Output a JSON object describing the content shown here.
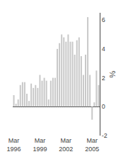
{
  "chart_data": {
    "type": "bar",
    "ylabel": "%",
    "categories": [
      "Mar\n1996",
      null,
      null,
      null,
      null,
      null,
      null,
      null,
      null,
      null,
      null,
      null,
      "Mar\n1999",
      null,
      null,
      null,
      null,
      null,
      null,
      null,
      null,
      null,
      null,
      null,
      "Mar\n2002",
      null,
      null,
      null,
      null,
      null,
      null,
      null,
      null,
      null,
      null,
      null,
      "Mar\n2005",
      null,
      null,
      null
    ],
    "values": [
      0.8,
      0.2,
      0.5,
      1.5,
      1.7,
      1.7,
      0.9,
      0.4,
      1.6,
      1.3,
      1.5,
      1.3,
      2.2,
      1.8,
      2.0,
      1.8,
      0.5,
      1.8,
      2.0,
      2.0,
      4.0,
      4.4,
      5.0,
      4.8,
      4.5,
      5.0,
      4.5,
      4.5,
      3.6,
      4.6,
      4.8,
      3.5,
      2.2,
      3.6,
      6.2,
      2.2,
      -0.9,
      0.3,
      2.5,
      1.5
    ],
    "color": "#c8c8c8",
    "ylim": [
      -2,
      6.5
    ],
    "yticks": [
      -2,
      0,
      2,
      4,
      6
    ],
    "grid": false
  }
}
